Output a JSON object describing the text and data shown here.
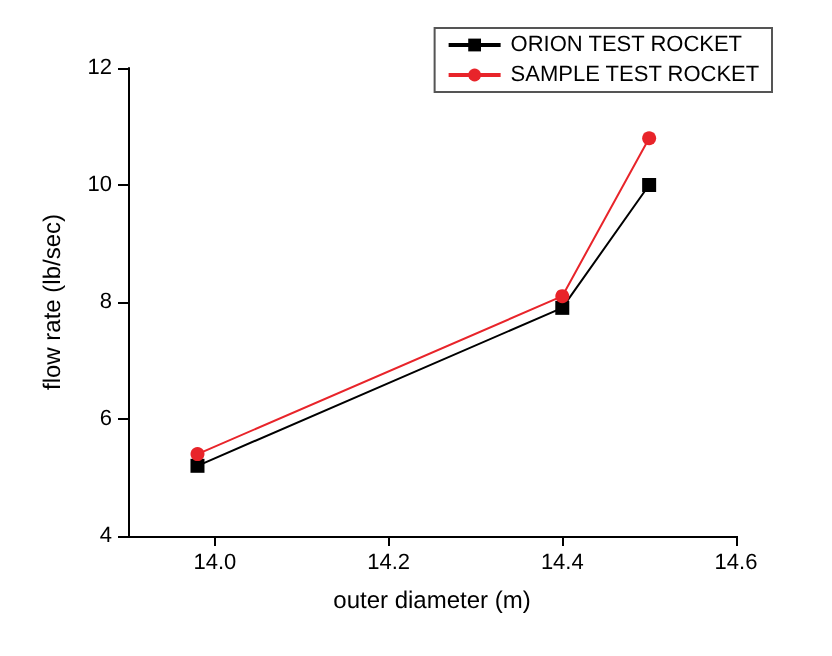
{
  "chart_data": {
    "type": "line",
    "xlabel": "outer diameter (m)",
    "ylabel": "flow rate (lb/sec)",
    "x": [
      13.98,
      14.4,
      14.5
    ],
    "series": [
      {
        "name": "ORION TEST ROCKET",
        "color": "#000000",
        "marker": "square",
        "values": [
          5.2,
          7.9,
          10.0
        ]
      },
      {
        "name": "SAMPLE TEST ROCKET",
        "color": "#e8242a",
        "marker": "circle",
        "values": [
          5.4,
          8.1,
          10.8
        ]
      }
    ],
    "xlim": [
      13.9,
      14.6
    ],
    "xticks": [
      {
        "value": 14,
        "label": "14.0"
      },
      14.2,
      14.4,
      14.6
    ],
    "ylim": [
      4,
      12
    ],
    "yticks": [
      4,
      6,
      8,
      10,
      12
    ],
    "grid": false,
    "legend": "top right",
    "line_style": "solid"
  }
}
